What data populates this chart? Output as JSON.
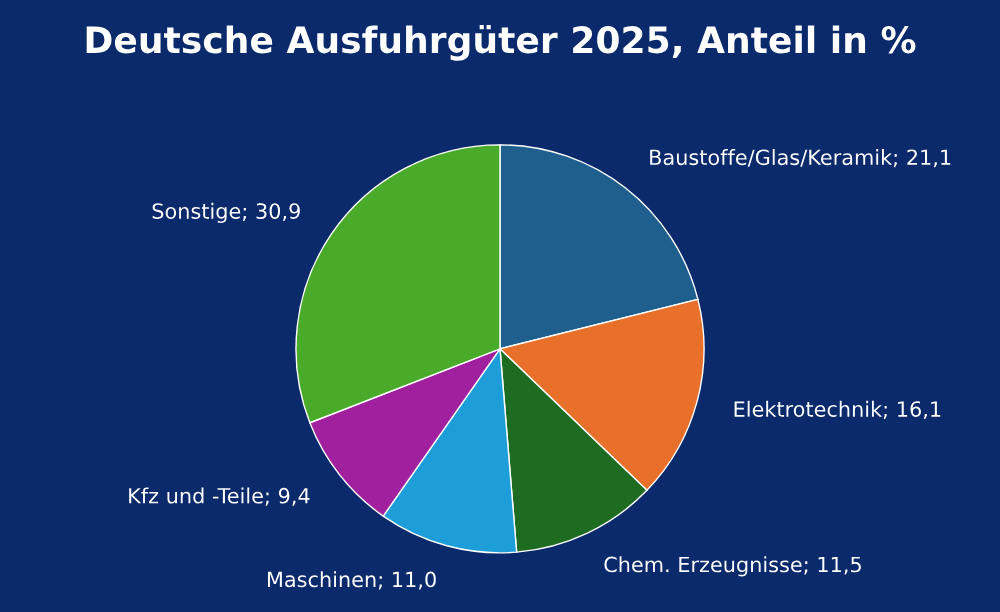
{
  "chart_data": {
    "type": "pie",
    "title": "Deutsche Ausfuhrgüter 2025, Anteil in %",
    "categories": [
      "Baustoffe/Glas/Keramik",
      "Elektrotechnik",
      "Chem. Erzeugnisse",
      "Maschinen",
      "Kfz und -Teile",
      "Sonstige"
    ],
    "values": [
      21.1,
      16.1,
      11.5,
      11.0,
      9.4,
      30.9
    ],
    "value_labels": [
      "21,1",
      "16,1",
      "11,5",
      "11,0",
      "9,4",
      "30,9"
    ],
    "colors": [
      "#1f5f8e",
      "#e8702a",
      "#1e6b22",
      "#1e9ed8",
      "#a0209e",
      "#4aaa2a"
    ],
    "legend": false
  }
}
